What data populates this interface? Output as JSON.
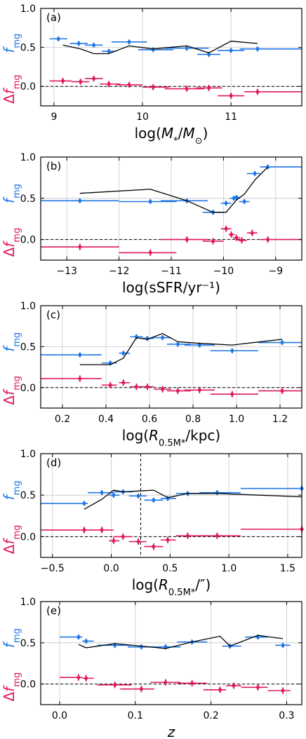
{
  "colors": {
    "fmg": "#1f77e6",
    "dfmg": "#e0195a",
    "model": "#000000",
    "grid": "#c8c8c8",
    "zero": "#000000"
  },
  "chart_data": [
    {
      "type": "scatter",
      "panel_label": "(a)",
      "xlabel": "log(M*/M⊙)",
      "ylabel_top": "fmg",
      "ylabel_bottom": "Δfmg",
      "xlim": [
        8.85,
        11.8
      ],
      "ylim": [
        -0.25,
        1.0
      ],
      "xticks": [
        9,
        10,
        11
      ],
      "xtick_labels": [
        "9",
        "10",
        "11"
      ],
      "yticks": [
        0.0,
        0.5,
        1.0
      ],
      "ytick_labels": [
        "0.0",
        "0.5",
        "1.0"
      ],
      "grid": true,
      "dashed_zero_line": true,
      "series": [
        {
          "role": "fmg",
          "x": [
            9.05,
            9.28,
            9.45,
            9.62,
            9.85,
            10.12,
            10.5,
            10.75,
            11.0,
            11.3
          ],
          "y": [
            0.61,
            0.55,
            0.53,
            0.45,
            0.57,
            0.47,
            0.49,
            0.41,
            0.46,
            0.48
          ],
          "xerr": [
            [
              8.95,
              9.15
            ],
            [
              9.18,
              9.38
            ],
            [
              9.35,
              9.55
            ],
            [
              9.54,
              9.7
            ],
            [
              9.65,
              10.05
            ],
            [
              9.95,
              10.35
            ],
            [
              10.25,
              10.75
            ],
            [
              10.62,
              10.88
            ],
            [
              10.85,
              11.15
            ],
            [
              11.1,
              11.8
            ]
          ],
          "yerr": 0.03
        },
        {
          "role": "dfmg",
          "x": [
            9.1,
            9.3,
            9.45,
            9.62,
            9.85,
            10.12,
            10.5,
            10.75,
            11.0,
            11.3
          ],
          "y": [
            0.07,
            0.06,
            0.1,
            0.03,
            0.02,
            -0.01,
            -0.03,
            -0.02,
            -0.12,
            -0.07
          ],
          "xerr": [
            [
              8.95,
              9.2
            ],
            [
              9.2,
              9.4
            ],
            [
              9.35,
              9.55
            ],
            [
              9.52,
              9.75
            ],
            [
              9.7,
              10.0
            ],
            [
              10.0,
              10.3
            ],
            [
              10.25,
              10.7
            ],
            [
              10.6,
              10.9
            ],
            [
              10.85,
              11.15
            ],
            [
              11.15,
              11.8
            ]
          ],
          "yerr": 0.04
        },
        {
          "role": "model",
          "x": [
            9.1,
            9.3,
            9.45,
            9.62,
            9.85,
            10.12,
            10.5,
            10.75,
            11.0,
            11.3
          ],
          "y": [
            0.53,
            0.48,
            0.42,
            0.42,
            0.52,
            0.48,
            0.52,
            0.43,
            0.58,
            0.55
          ]
        }
      ]
    },
    {
      "type": "scatter",
      "panel_label": "(b)",
      "xlabel": "log(sSFR/yr⁻¹)",
      "ylabel_top": "fmg",
      "ylabel_bottom": "Δfmg",
      "xlim": [
        -13.5,
        -8.5
      ],
      "ylim": [
        -0.25,
        1.0
      ],
      "xticks": [
        -13,
        -12,
        -11,
        -10,
        -9
      ],
      "xtick_labels": [
        "−13",
        "−12",
        "−11",
        "−10",
        "−9"
      ],
      "yticks": [
        0.0,
        0.5,
        1.0
      ],
      "ytick_labels": [
        "0.0",
        "0.5",
        "1.0"
      ],
      "grid": true,
      "dashed_zero_line": true,
      "series": [
        {
          "role": "fmg",
          "x": [
            -12.75,
            -11.4,
            -10.7,
            -10.2,
            -9.95,
            -9.8,
            -9.75,
            -9.6,
            -9.4,
            -9.15
          ],
          "y": [
            0.47,
            0.46,
            0.47,
            0.33,
            0.44,
            0.5,
            0.51,
            0.46,
            0.8,
            0.88
          ],
          "xerr": [
            [
              -13.5,
              -12.0
            ],
            [
              -12.0,
              -10.9
            ],
            [
              -11.2,
              -10.3
            ],
            [
              -10.4,
              -10.0
            ],
            [
              -10.05,
              -9.85
            ],
            [
              -9.88,
              -9.72
            ],
            [
              -9.82,
              -9.68
            ],
            [
              -9.7,
              -9.5
            ],
            [
              -9.55,
              -9.3
            ],
            [
              -9.3,
              -8.5
            ]
          ],
          "yerr": 0.03
        },
        {
          "role": "dfmg",
          "x": [
            -12.75,
            -11.4,
            -10.7,
            -10.2,
            -9.95,
            -9.85,
            -9.75,
            -9.65,
            -9.45,
            -9.15
          ],
          "y": [
            -0.09,
            -0.16,
            0.0,
            -0.02,
            0.13,
            0.06,
            0.02,
            -0.01,
            0.08,
            0.0
          ],
          "xerr": [
            [
              -13.5,
              -12.0
            ],
            [
              -12.0,
              -10.9
            ],
            [
              -11.2,
              -10.3
            ],
            [
              -10.4,
              -10.0
            ],
            [
              -10.05,
              -9.85
            ],
            [
              -9.9,
              -9.78
            ],
            [
              -9.82,
              -9.68
            ],
            [
              -9.72,
              -9.55
            ],
            [
              -9.55,
              -9.35
            ],
            [
              -9.3,
              -8.5
            ]
          ],
          "yerr": 0.04
        },
        {
          "role": "model",
          "x": [
            -12.75,
            -11.4,
            -10.7,
            -10.2,
            -9.95,
            -9.75,
            -9.6,
            -9.4,
            -9.15
          ],
          "y": [
            0.56,
            0.61,
            0.47,
            0.33,
            0.33,
            0.48,
            0.55,
            0.72,
            0.88
          ]
        }
      ]
    },
    {
      "type": "scatter",
      "panel_label": "(c)",
      "xlabel": "log(R0.5M*/kpc)",
      "ylabel_top": "fmg",
      "ylabel_bottom": "Δfmg",
      "xlim": [
        0.1,
        1.3
      ],
      "ylim": [
        -0.25,
        1.0
      ],
      "xticks": [
        0.2,
        0.4,
        0.6,
        0.8,
        1.0,
        1.2
      ],
      "xtick_labels": [
        "0.2",
        "0.4",
        "0.6",
        "0.8",
        "1.0",
        "1.2"
      ],
      "yticks": [
        0.0,
        0.5,
        1.0
      ],
      "ytick_labels": [
        "0.0",
        "0.5",
        "1.0"
      ],
      "grid": true,
      "dashed_zero_line": true,
      "series": [
        {
          "role": "fmg",
          "x": [
            0.28,
            0.42,
            0.48,
            0.54,
            0.59,
            0.66,
            0.73,
            0.83,
            0.98,
            1.21
          ],
          "y": [
            0.4,
            0.3,
            0.42,
            0.62,
            0.6,
            0.61,
            0.53,
            0.52,
            0.45,
            0.55
          ],
          "xerr": [
            [
              0.1,
              0.38
            ],
            [
              0.38,
              0.45
            ],
            [
              0.46,
              0.51
            ],
            [
              0.51,
              0.57
            ],
            [
              0.56,
              0.62
            ],
            [
              0.62,
              0.7
            ],
            [
              0.68,
              0.79
            ],
            [
              0.76,
              0.9
            ],
            [
              0.88,
              1.1
            ],
            [
              1.1,
              1.3
            ]
          ],
          "yerr": 0.03
        },
        {
          "role": "dfmg",
          "x": [
            0.28,
            0.42,
            0.48,
            0.54,
            0.59,
            0.66,
            0.73,
            0.83,
            0.98,
            1.21
          ],
          "y": [
            0.11,
            0.03,
            0.06,
            0.01,
            0.01,
            -0.02,
            -0.04,
            -0.03,
            -0.08,
            -0.04
          ],
          "xerr": [
            [
              0.1,
              0.38
            ],
            [
              0.38,
              0.45
            ],
            [
              0.46,
              0.51
            ],
            [
              0.51,
              0.57
            ],
            [
              0.56,
              0.62
            ],
            [
              0.62,
              0.7
            ],
            [
              0.68,
              0.79
            ],
            [
              0.76,
              0.9
            ],
            [
              0.88,
              1.1
            ],
            [
              1.1,
              1.3
            ]
          ],
          "yerr": 0.04
        },
        {
          "role": "model",
          "x": [
            0.28,
            0.42,
            0.48,
            0.54,
            0.59,
            0.66,
            0.73,
            0.83,
            0.98,
            1.21
          ],
          "y": [
            0.28,
            0.28,
            0.36,
            0.61,
            0.59,
            0.66,
            0.56,
            0.54,
            0.52,
            0.59
          ]
        }
      ]
    },
    {
      "type": "scatter",
      "panel_label": "(d)",
      "xlabel": "log(R0.5M*/″)",
      "ylabel_top": "fmg",
      "ylabel_bottom": "Δfmg",
      "xlim": [
        -0.6,
        1.62
      ],
      "ylim": [
        -0.25,
        1.0
      ],
      "xticks": [
        -0.5,
        0.0,
        0.5,
        1.0,
        1.5
      ],
      "xtick_labels": [
        "−0.5",
        "0.0",
        "0.5",
        "1.0",
        "1.5"
      ],
      "yticks": [
        0.0,
        0.5,
        1.0
      ],
      "ytick_labels": [
        "0.0",
        "0.5",
        "1.0"
      ],
      "grid": true,
      "dashed_zero_line": true,
      "vertical_dashed_line_x": 0.25,
      "series": [
        {
          "role": "fmg",
          "x": [
            -0.23,
            -0.08,
            0.02,
            0.1,
            0.23,
            0.36,
            0.48,
            0.65,
            0.9,
            1.62
          ],
          "y": [
            0.4,
            0.53,
            0.5,
            0.54,
            0.49,
            0.44,
            0.46,
            0.52,
            0.53,
            0.58
          ],
          "xerr": [
            [
              -0.6,
              -0.2
            ],
            [
              -0.2,
              0.02
            ],
            [
              -0.02,
              0.07
            ],
            [
              0.02,
              0.18
            ],
            [
              0.15,
              0.3
            ],
            [
              0.28,
              0.44
            ],
            [
              0.42,
              0.55
            ],
            [
              0.55,
              0.8
            ],
            [
              0.75,
              1.1
            ],
            [
              1.1,
              1.62
            ]
          ],
          "yerr": 0.03
        },
        {
          "role": "dfmg",
          "x": [
            -0.23,
            -0.08,
            0.02,
            0.1,
            0.23,
            0.36,
            0.48,
            0.65,
            0.9,
            1.62
          ],
          "y": [
            0.08,
            0.08,
            -0.05,
            0.0,
            -0.06,
            -0.12,
            -0.04,
            0.01,
            0.01,
            0.09
          ],
          "xerr": [
            [
              -0.6,
              -0.2
            ],
            [
              -0.2,
              0.02
            ],
            [
              -0.02,
              0.07
            ],
            [
              0.02,
              0.18
            ],
            [
              0.15,
              0.3
            ],
            [
              0.28,
              0.44
            ],
            [
              0.42,
              0.55
            ],
            [
              0.55,
              0.8
            ],
            [
              0.75,
              1.1
            ],
            [
              1.1,
              1.62
            ]
          ],
          "yerr": 0.04
        },
        {
          "role": "model",
          "x": [
            -0.23,
            -0.08,
            0.02,
            0.1,
            0.23,
            0.36,
            0.48,
            0.65,
            0.9,
            1.62
          ],
          "y": [
            0.33,
            0.45,
            0.56,
            0.54,
            0.55,
            0.56,
            0.47,
            0.52,
            0.52,
            0.48
          ]
        }
      ]
    },
    {
      "type": "scatter",
      "panel_label": "(e)",
      "xlabel": "z",
      "ylabel_top": "fmg",
      "ylabel_bottom": "Δfmg",
      "xlim": [
        -0.025,
        0.32
      ],
      "ylim": [
        -0.25,
        1.0
      ],
      "xticks": [
        0.0,
        0.1,
        0.2,
        0.3
      ],
      "xtick_labels": [
        "0.0",
        "0.1",
        "0.2",
        "0.3"
      ],
      "yticks": [
        0.0,
        0.5,
        1.0
      ],
      "ytick_labels": [
        "0.0",
        "0.5",
        "1.0"
      ],
      "grid": true,
      "dashed_zero_line": true,
      "series": [
        {
          "role": "fmg",
          "x": [
            0.025,
            0.035,
            0.073,
            0.108,
            0.14,
            0.175,
            0.225,
            0.262,
            0.295
          ],
          "y": [
            0.57,
            0.52,
            0.47,
            0.45,
            0.45,
            0.51,
            0.46,
            0.57,
            0.47
          ],
          "xerr": [
            [
              0.0,
              0.03
            ],
            [
              0.03,
              0.045
            ],
            [
              0.05,
              0.095
            ],
            [
              0.09,
              0.125
            ],
            [
              0.12,
              0.16
            ],
            [
              0.155,
              0.195
            ],
            [
              0.215,
              0.24
            ],
            [
              0.245,
              0.275
            ],
            [
              0.285,
              0.305
            ]
          ],
          "yerr": 0.03
        },
        {
          "role": "dfmg",
          "x": [
            0.025,
            0.035,
            0.073,
            0.108,
            0.14,
            0.175,
            0.212,
            0.23,
            0.262,
            0.295
          ],
          "y": [
            0.08,
            0.07,
            -0.01,
            -0.06,
            0.02,
            0.01,
            -0.07,
            -0.02,
            -0.04,
            -0.08
          ],
          "xerr": [
            [
              0.0,
              0.03
            ],
            [
              0.03,
              0.045
            ],
            [
              0.05,
              0.095
            ],
            [
              0.08,
              0.125
            ],
            [
              0.12,
              0.16
            ],
            [
              0.155,
              0.195
            ],
            [
              0.19,
              0.22
            ],
            [
              0.22,
              0.24
            ],
            [
              0.24,
              0.275
            ],
            [
              0.275,
              0.305
            ]
          ],
          "yerr": 0.04
        },
        {
          "role": "model",
          "x": [
            0.025,
            0.035,
            0.073,
            0.108,
            0.14,
            0.175,
            0.212,
            0.225,
            0.262,
            0.295
          ],
          "y": [
            0.48,
            0.44,
            0.49,
            0.46,
            0.43,
            0.51,
            0.58,
            0.46,
            0.59,
            0.55
          ]
        }
      ]
    }
  ]
}
